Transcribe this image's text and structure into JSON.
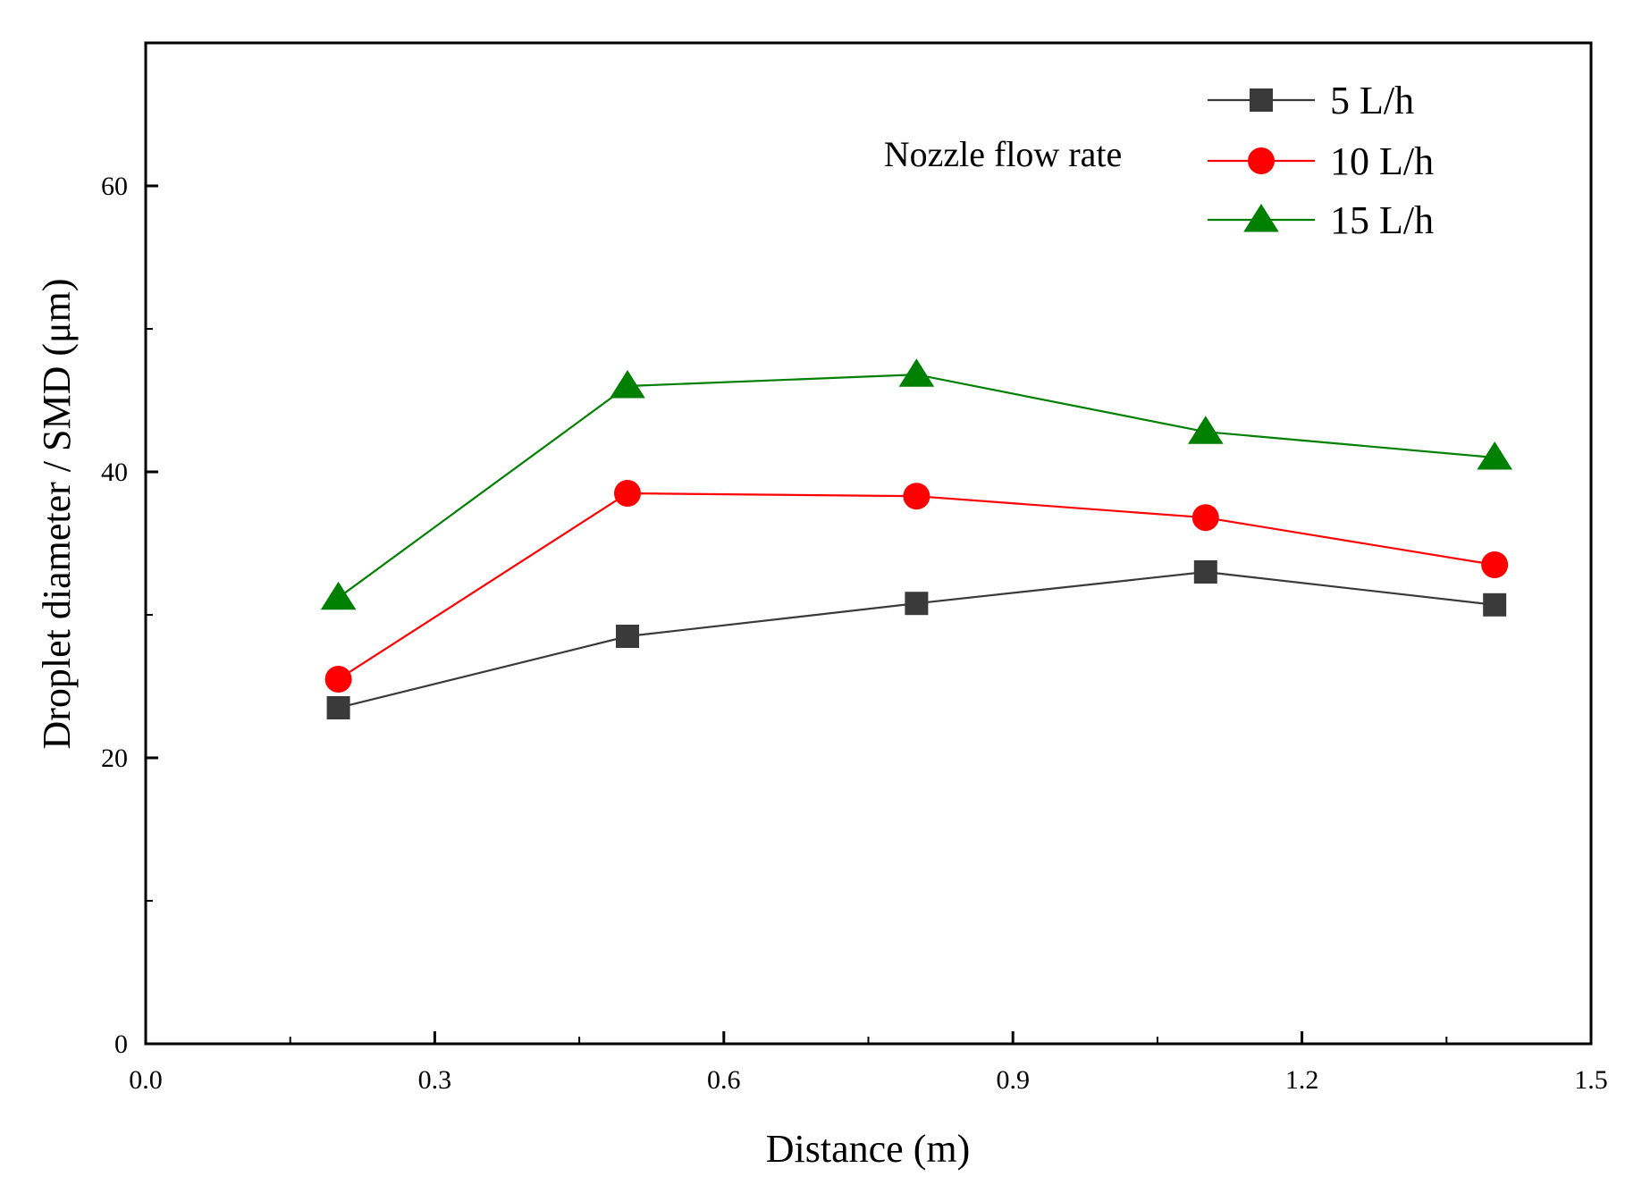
{
  "chart_data": {
    "type": "line",
    "title": "",
    "xlabel": "Distance (m)",
    "ylabel": "Droplet diameter / SMD (μm)",
    "xlim": [
      0.0,
      1.5
    ],
    "ylim": [
      0,
      70
    ],
    "x_ticks": [
      0.0,
      0.3,
      0.6,
      0.9,
      1.2,
      1.5
    ],
    "x_tick_labels": [
      "0.0",
      "0.3",
      "0.6",
      "0.9",
      "1.2",
      "1.5"
    ],
    "y_ticks": [
      0,
      20,
      40,
      60
    ],
    "y_tick_labels": [
      "0",
      "20",
      "40",
      "60"
    ],
    "grid": false,
    "legend_title": "Nozzle flow rate",
    "legend_position": "top-right",
    "x": [
      0.2,
      0.5,
      0.8,
      1.1,
      1.4
    ],
    "series": [
      {
        "name": "5 L/h",
        "values": [
          23.5,
          28.5,
          30.8,
          33.0,
          30.7
        ],
        "color": "#3a3a3a",
        "marker": "square"
      },
      {
        "name": "10 L/h",
        "values": [
          25.5,
          38.5,
          38.3,
          36.8,
          33.5
        ],
        "color": "#ff0000",
        "marker": "circle"
      },
      {
        "name": "15 L/h",
        "values": [
          31.2,
          46.0,
          46.8,
          42.8,
          41.0
        ],
        "color": "#008000",
        "marker": "triangle"
      }
    ]
  }
}
